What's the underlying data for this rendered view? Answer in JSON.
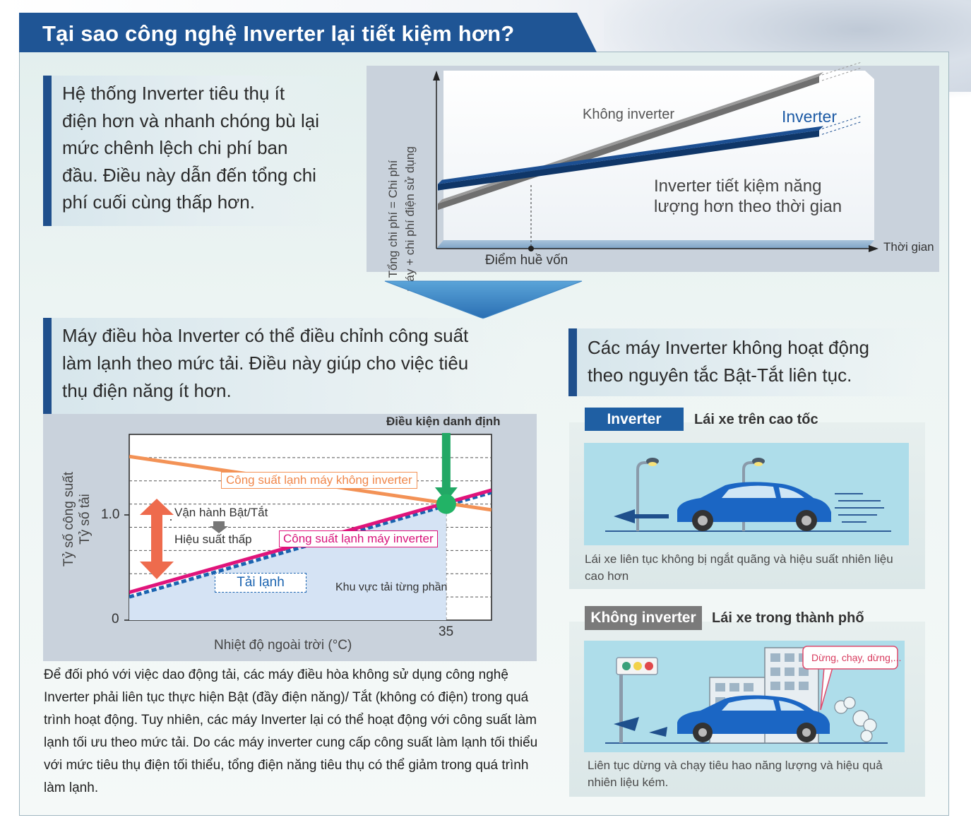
{
  "title": "Tại sao công nghệ Inverter lại tiết kiệm hơn?",
  "callout_top": "Hệ thống Inverter tiêu thụ ít\nđiện hơn và nhanh chóng bù lại\nmức chênh lệch chi phí ban\nđầu. Điều này dẫn đến tổng chi\nphí cuối cùng thấp hơn.",
  "callout_mid": "Máy điều hòa Inverter có thể điều chỉnh công suất\nlàm lạnh theo mức tải. Điều này giúp cho việc tiêu\nthụ điện năng ít hơn.",
  "callout_right": "Các máy Inverter không hoạt động\ntheo nguyên tắc Bật-Tắt liên tục.",
  "chart_data": [
    {
      "type": "line",
      "ylabel_line1": "Tổng chi phí = Chi phí",
      "ylabel_line2": "máy + chi phí điện sử dụng",
      "xlabel": "Thời gian",
      "annotations": {
        "break_even": "Điểm huề vốn",
        "savings_line1": "Inverter tiết kiệm năng",
        "savings_line2": "lượng hơn theo thời gian"
      },
      "series": [
        {
          "name": "Không inverter",
          "color": "#9a9a9a",
          "start": 0.15,
          "end": 1.0
        },
        {
          "name": "Inverter",
          "color": "#1c4f92",
          "start": 0.28,
          "end": 0.64
        }
      ]
    },
    {
      "type": "line",
      "xlabel": "Nhiệt độ ngoài trời (°C)",
      "ylabel_line1": "Tỷ số công suất",
      "ylabel_line2": "Tỷ số tải",
      "y_ticks": [
        "0",
        "1.0"
      ],
      "x_ticks": [
        "35"
      ],
      "xlim": [
        0,
        40
      ],
      "ylim": [
        0,
        1.6
      ],
      "rated_label": "Điều kiện danh định",
      "rated_x": 35,
      "series": [
        {
          "name": "Công suất lạnh máy không inverter",
          "color": "#f39256",
          "x": [
            0,
            40
          ],
          "y": [
            1.41,
            0.95
          ]
        },
        {
          "name": "Công suất lạnh máy inverter",
          "color": "#e0147b",
          "x": [
            0,
            40
          ],
          "y": [
            0.24,
            1.12
          ]
        },
        {
          "name": "Tải lạnh",
          "color": "#1a63b0",
          "x": [
            0,
            40
          ],
          "y": [
            0.2,
            1.1
          ]
        }
      ],
      "annotations": {
        "onoff": "Vận hành Bật/Tắt",
        "low_eff": "Hiệu suất thấp",
        "partial": "Khu vực tải từng phần"
      }
    }
  ],
  "inverter_tag": "Inverter",
  "inverter_title": "Lái xe trên cao tốc",
  "inverter_caption": "Lái xe liên tục không bị ngắt quãng và hiệu suất nhiên liệu cao hơn",
  "noninv_tag": "Không inverter",
  "noninv_title": "Lái xe trong thành phố",
  "noninv_bubble": "Dừng, chạy, dừng,...",
  "noninv_caption": "Liên tục dừng và chạy tiêu hao năng lượng và hiệu quả nhiên liệu kém.",
  "body_text": "Để đối phó với việc dao động tải, các máy điều hòa không sử dụng công nghệ Inverter phải liên tục thực hiện Bật (đầy điện năng)/ Tắt (không có điện) trong quá trình hoạt động. Tuy nhiên, các máy Inverter lại có thể hoạt động với công suất làm lạnh tối ưu theo mức tải. Do các máy inverter cung cấp công suất làm lạnh tối thiểu với mức tiêu thụ điện tối thiểu, tổng điện năng tiêu thụ có thể giảm trong quá trình làm lạnh.",
  "colors": {
    "title_bar": "#1f5595",
    "accent_blue": "#1c4f92",
    "inverter_tag": "#1f5fa3",
    "noninv_tag": "#7a7a7a"
  },
  "icons": [
    "down-arrow-icon",
    "street-lamp-icon",
    "car-icon",
    "traffic-light-icon",
    "building-icon",
    "exhaust-cloud-icon",
    "left-arrow-icon"
  ]
}
